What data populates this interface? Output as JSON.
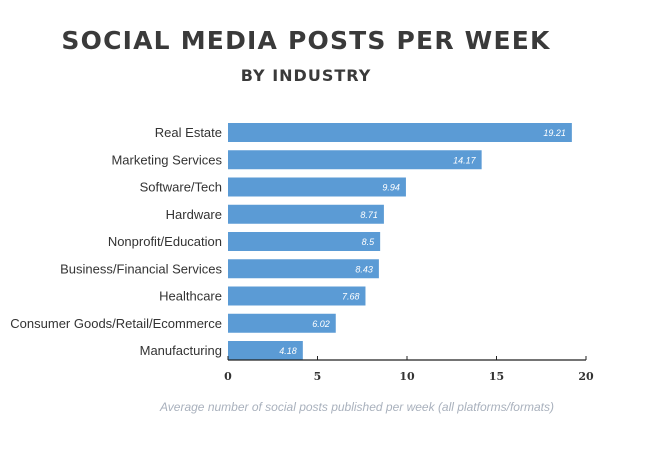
{
  "chart_data": {
    "type": "bar",
    "orientation": "horizontal",
    "title": "SOCIAL MEDIA POSTS PER WEEK",
    "subtitle": "BY INDUSTRY",
    "xlabel": "Average number of social posts published per week (all platforms/formats)",
    "ylabel": "",
    "xlim": [
      0,
      20
    ],
    "xticks": [
      0,
      5,
      10,
      15,
      20
    ],
    "grid": false,
    "bar_color": "#5b9bd5",
    "categories": [
      "Real Estate",
      "Marketing Services",
      "Software/Tech",
      "Hardware",
      "Nonprofit/Education",
      "Business/Financial Services",
      "Healthcare",
      "Consumer Goods/Retail/Ecommerce",
      "Manufacturing"
    ],
    "values": [
      19.21,
      14.17,
      9.94,
      8.71,
      8.5,
      8.43,
      7.68,
      6.02,
      4.18
    ],
    "value_labels": [
      "19.21",
      "14.17",
      "9.94",
      "8.71",
      "8.5",
      "8.43",
      "7.68",
      "6.02",
      "4.18"
    ]
  }
}
